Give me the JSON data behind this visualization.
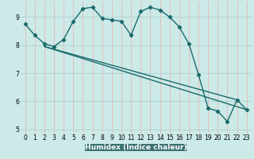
{
  "title": "",
  "xlabel": "Humidex (Indice chaleur)",
  "bg_color": "#cceae8",
  "grid_color_v": "#e8b8b8",
  "grid_color_h": "#a8d4d0",
  "line_color": "#1a6b6b",
  "bottom_bar_color": "#3a7070",
  "xlim": [
    -0.5,
    23.5
  ],
  "ylim": [
    4.85,
    9.55
  ],
  "yticks": [
    5,
    6,
    7,
    8,
    9
  ],
  "xticks": [
    0,
    1,
    2,
    3,
    4,
    5,
    6,
    7,
    8,
    9,
    10,
    11,
    12,
    13,
    14,
    15,
    16,
    17,
    18,
    19,
    20,
    21,
    22,
    23
  ],
  "line1_x": [
    0,
    1,
    2,
    3,
    4,
    5,
    6,
    7,
    8,
    9,
    10,
    11,
    12,
    13,
    14,
    15,
    16,
    17,
    18,
    19,
    20,
    21,
    22,
    23
  ],
  "line1_y": [
    8.75,
    8.35,
    8.05,
    7.95,
    8.2,
    8.85,
    9.3,
    9.35,
    8.95,
    8.9,
    8.85,
    8.35,
    9.2,
    9.35,
    9.25,
    9.0,
    8.65,
    8.05,
    6.95,
    5.75,
    5.65,
    5.28,
    6.05,
    5.7
  ],
  "line2_x": [
    2,
    23
  ],
  "line2_y": [
    7.95,
    5.7
  ],
  "line3_x": [
    2,
    22
  ],
  "line3_y": [
    7.95,
    6.05
  ]
}
